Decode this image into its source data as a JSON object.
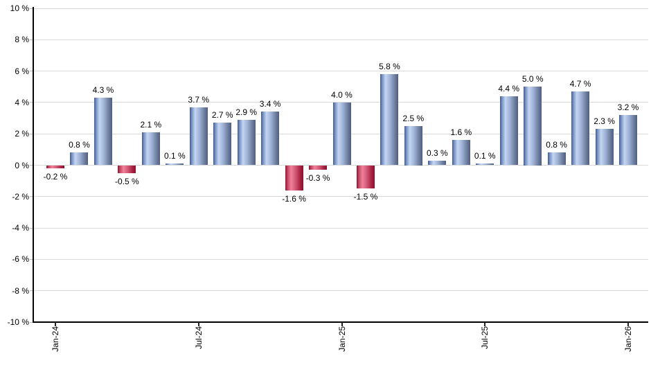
{
  "chart_data": {
    "type": "bar",
    "title": "",
    "xlabel": "",
    "ylabel": "",
    "ylim": [
      -10,
      10
    ],
    "y_tick_step": 2,
    "grid": true,
    "legend": false,
    "y_tick_labels": [
      "10 %",
      "8 %",
      "6 %",
      "4 %",
      "2 %",
      "0 %",
      "-2 %",
      "-4 %",
      "-6 %",
      "-8 %",
      "-10 %"
    ],
    "y_tick_values": [
      10,
      8,
      6,
      4,
      2,
      0,
      -2,
      -4,
      -6,
      -8,
      -10
    ],
    "x_tick_labels": [
      {
        "label": "Jan-24",
        "index": 0
      },
      {
        "label": "Jul-24",
        "index": 6
      },
      {
        "label": "Jan-25",
        "index": 12
      },
      {
        "label": "Jul-25",
        "index": 18
      },
      {
        "label": "Jan-26",
        "index": 24
      }
    ],
    "values": [
      -0.2,
      0.8,
      4.3,
      -0.5,
      2.1,
      0.1,
      3.7,
      2.7,
      2.9,
      3.4,
      -1.6,
      -0.3,
      4.0,
      -1.5,
      5.8,
      2.5,
      0.3,
      1.6,
      0.1,
      4.4,
      5.0,
      0.8,
      4.7,
      2.3,
      3.2
    ],
    "bar_labels": [
      "-0.2 %",
      "0.8 %",
      "4.3 %",
      "-0.5 %",
      "2.1 %",
      "0.1 %",
      "3.7 %",
      "2.7 %",
      "2.9 %",
      "3.4 %",
      "-1.6 %",
      "-0.3 %",
      "4.0 %",
      "-1.5 %",
      "5.8 %",
      "2.5 %",
      "0.3 %",
      "1.6 %",
      "0.1 %",
      "4.4 %",
      "5.0 %",
      "0.8 %",
      "4.7 %",
      "2.3 %",
      "3.2 %"
    ],
    "colors": {
      "positive_bar_edge": "#43598e",
      "positive_bar_highlight": "#c4d6f2",
      "negative_bar_edge": "#8e1430",
      "negative_bar_highlight": "#f0829b",
      "gridline": "#d9d9d9",
      "axis": "#000000",
      "label_text": "#000000",
      "background": "#ffffff"
    }
  }
}
